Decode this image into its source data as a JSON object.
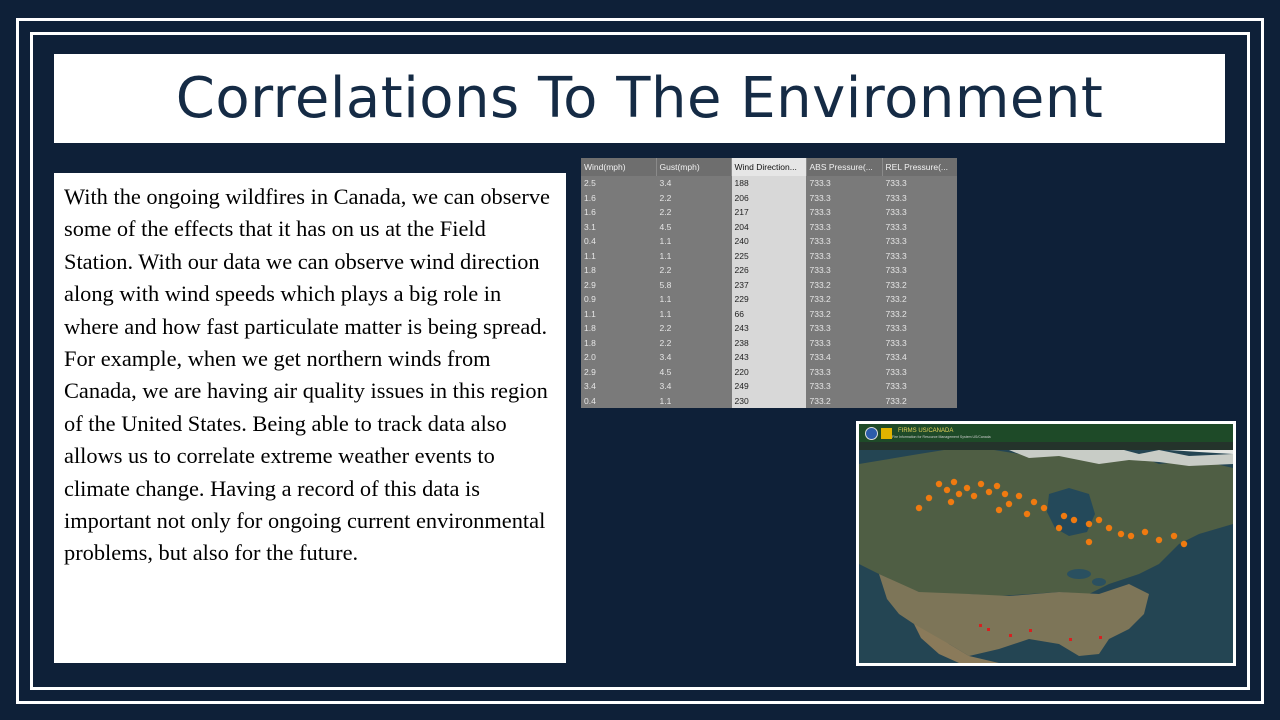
{
  "slide": {
    "title": "Correlations To The Environment",
    "body": "With the ongoing wildfires in Canada, we can observe some of the effects that it has on us at the Field Station. With our data we can observe wind direction along with wind speeds which plays a big role in where and how fast particulate matter is being spread. For example, when we get northern winds from Canada, we are having air quality issues in this region of the United States.  Being able to track data also allows us to correlate extreme weather events to climate change. Having a record of this data is important not only for ongoing current environmental problems, but also for the future."
  },
  "table": {
    "headers": [
      "Wind(mph)",
      "Gust(mph)",
      "Wind Direction...",
      "ABS Pressure(...",
      "REL Pressure(..."
    ],
    "rows": [
      [
        "2.5",
        "3.4",
        "188",
        "733.3",
        "733.3"
      ],
      [
        "1.6",
        "2.2",
        "206",
        "733.3",
        "733.3"
      ],
      [
        "1.6",
        "2.2",
        "217",
        "733.3",
        "733.3"
      ],
      [
        "3.1",
        "4.5",
        "204",
        "733.3",
        "733.3"
      ],
      [
        "0.4",
        "1.1",
        "240",
        "733.3",
        "733.3"
      ],
      [
        "1.1",
        "1.1",
        "225",
        "733.3",
        "733.3"
      ],
      [
        "1.8",
        "2.2",
        "226",
        "733.3",
        "733.3"
      ],
      [
        "2.9",
        "5.8",
        "237",
        "733.2",
        "733.2"
      ],
      [
        "0.9",
        "1.1",
        "229",
        "733.2",
        "733.2"
      ],
      [
        "1.1",
        "1.1",
        "66",
        "733.2",
        "733.2"
      ],
      [
        "1.8",
        "2.2",
        "243",
        "733.3",
        "733.3"
      ],
      [
        "1.8",
        "2.2",
        "238",
        "733.3",
        "733.3"
      ],
      [
        "2.0",
        "3.4",
        "243",
        "733.4",
        "733.4"
      ],
      [
        "2.9",
        "4.5",
        "220",
        "733.3",
        "733.3"
      ],
      [
        "3.4",
        "3.4",
        "249",
        "733.3",
        "733.3"
      ],
      [
        "0.4",
        "1.1",
        "230",
        "733.2",
        "733.2"
      ]
    ]
  },
  "map": {
    "title": "FIRMS US/CANADA",
    "subtitle": "Fire Information for Resource Management System US/Canada"
  },
  "colors": {
    "background": "#0e2038",
    "title_text": "#152b45",
    "fire": "#f07a10"
  }
}
